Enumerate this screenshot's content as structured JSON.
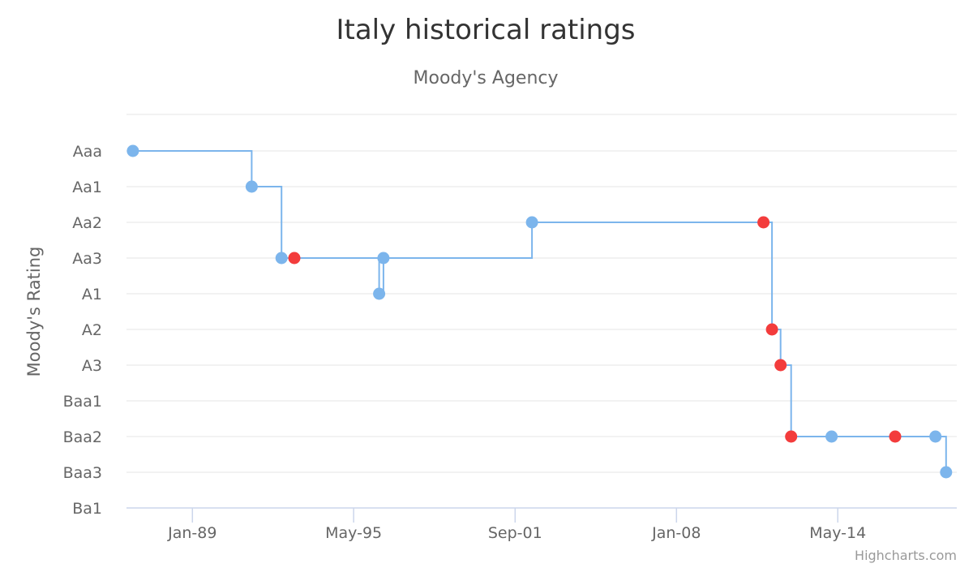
{
  "chart_data": {
    "type": "line",
    "step": "left",
    "title": "Italy historical ratings",
    "subtitle": "Moody's Agency",
    "xlabel": "",
    "ylabel": "Moody's Rating",
    "y_categories": [
      "Aaa",
      "Aa1",
      "Aa2",
      "Aa3",
      "A1",
      "A2",
      "A3",
      "Baa1",
      "Baa2",
      "Baa3",
      "Ba1"
    ],
    "x_ticks": [
      {
        "label": "Jan-89",
        "date": "1989-01-01"
      },
      {
        "label": "May-95",
        "date": "1995-05-01"
      },
      {
        "label": "Sep-01",
        "date": "2001-09-01"
      },
      {
        "label": "Jan-08",
        "date": "2008-01-01"
      },
      {
        "label": "May-14",
        "date": "2014-05-01"
      }
    ],
    "xlim": [
      "1986-06-01",
      "2019-01-01"
    ],
    "grid": true,
    "legend": "none",
    "line_color": "#7cb5ec",
    "downgrade_color": "#f33c3c",
    "series": [
      {
        "points": [
          {
            "date": "1986-09-01",
            "rating": "Aaa",
            "marker": "normal"
          },
          {
            "date": "1991-05-01",
            "rating": "Aa1",
            "marker": "normal"
          },
          {
            "date": "1992-07-01",
            "rating": "Aa3",
            "marker": "normal"
          },
          {
            "date": "1993-01-01",
            "rating": "Aa3",
            "marker": "downgrade"
          },
          {
            "date": "1996-05-01",
            "rating": "A1",
            "marker": "normal"
          },
          {
            "date": "1996-07-01",
            "rating": "Aa3",
            "marker": "normal"
          },
          {
            "date": "2002-05-01",
            "rating": "Aa2",
            "marker": "normal"
          },
          {
            "date": "2011-06-01",
            "rating": "Aa2",
            "marker": "downgrade"
          },
          {
            "date": "2011-10-01",
            "rating": "A2",
            "marker": "downgrade"
          },
          {
            "date": "2012-02-01",
            "rating": "A3",
            "marker": "downgrade"
          },
          {
            "date": "2012-07-01",
            "rating": "Baa2",
            "marker": "downgrade"
          },
          {
            "date": "2014-02-01",
            "rating": "Baa2",
            "marker": "normal"
          },
          {
            "date": "2016-08-01",
            "rating": "Baa2",
            "marker": "downgrade"
          },
          {
            "date": "2018-03-01",
            "rating": "Baa2",
            "marker": "normal"
          },
          {
            "date": "2018-08-01",
            "rating": "Baa3",
            "marker": "normal"
          }
        ]
      }
    ]
  },
  "credit": "Highcharts.com"
}
